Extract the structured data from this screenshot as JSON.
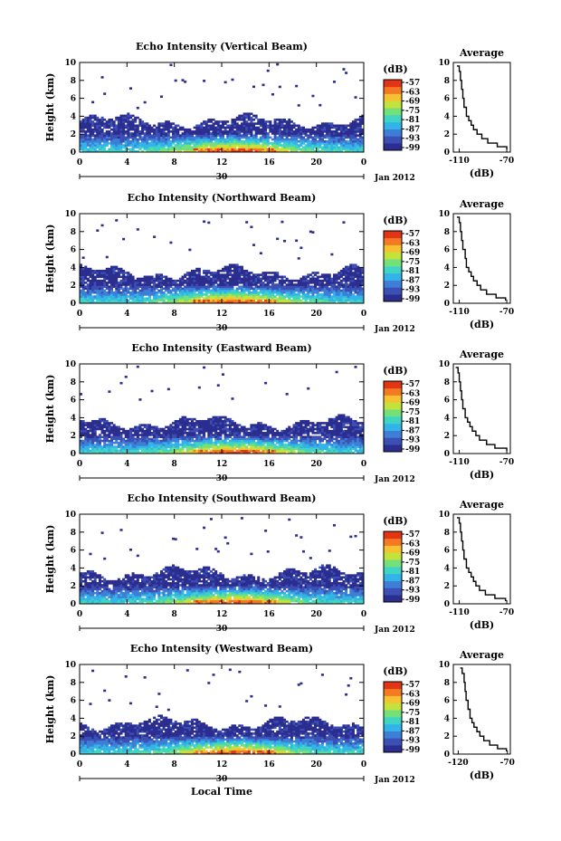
{
  "colors": {
    "scale": [
      "#2b2d8f",
      "#3c4fb4",
      "#3d7fd6",
      "#33b4e8",
      "#3fd4c4",
      "#74e07a",
      "#c4e23c",
      "#f7c231",
      "#f37a22",
      "#e23516"
    ],
    "profile": "#000000"
  },
  "chart_data": [
    {
      "type": "heatmap",
      "title": "Echo Intensity (Vertical Beam)",
      "ylabel": "Height (km)",
      "x_ticks": [
        "0",
        "4",
        "8",
        "12",
        "16",
        "20",
        "0"
      ],
      "y_ticks": [
        "0",
        "2",
        "4",
        "6",
        "8",
        "10"
      ],
      "date_day": "30",
      "date_label": "Jan 2012",
      "xlim": [
        0,
        24
      ],
      "ylim": [
        0,
        10
      ],
      "colorbar": {
        "unit": "(dB)",
        "ticks": [
          "-57",
          "-63",
          "-69",
          "-75",
          "-81",
          "-87",
          "-93",
          "-99"
        ]
      },
      "profile": {
        "title": "Average",
        "xlabel": "(dB)",
        "x_ticks": [
          "-110",
          "-70"
        ],
        "xlim": [
          -115,
          -67
        ],
        "y_ticks": [
          "0",
          "2",
          "4",
          "6",
          "8",
          "10"
        ],
        "heights": [
          0.3,
          0.6,
          1.0,
          1.5,
          2.0,
          2.5,
          3.0,
          3.5,
          4.0,
          5.0,
          6.0,
          7.0,
          8.0,
          9.0,
          9.6
        ],
        "values": [
          -70,
          -78,
          -86,
          -91,
          -95,
          -98,
          -100,
          -102,
          -104,
          -106,
          -107,
          -108,
          -109,
          -110,
          -112
        ]
      }
    },
    {
      "type": "heatmap",
      "title": "Echo Intensity (Northward Beam)",
      "ylabel": "Height (km)",
      "x_ticks": [
        "0",
        "4",
        "8",
        "12",
        "16",
        "20",
        "0"
      ],
      "y_ticks": [
        "0",
        "2",
        "4",
        "6",
        "8",
        "10"
      ],
      "date_day": "30",
      "date_label": "Jan 2012",
      "xlim": [
        0,
        24
      ],
      "ylim": [
        0,
        10
      ],
      "colorbar": {
        "unit": "(dB)",
        "ticks": [
          "-57",
          "-63",
          "-69",
          "-75",
          "-81",
          "-87",
          "-93",
          "-99"
        ]
      },
      "profile": {
        "title": "Average",
        "xlabel": "(dB)",
        "x_ticks": [
          "-110",
          "-70"
        ],
        "xlim": [
          -115,
          -67
        ],
        "y_ticks": [
          "0",
          "2",
          "4",
          "6",
          "8",
          "10"
        ],
        "heights": [
          0.3,
          0.6,
          1.0,
          1.5,
          2.0,
          2.5,
          3.0,
          3.5,
          4.0,
          5.0,
          6.0,
          7.0,
          8.0,
          9.0,
          9.6
        ],
        "values": [
          -71,
          -79,
          -87,
          -92,
          -95,
          -98,
          -100,
          -102,
          -104,
          -105,
          -107,
          -108,
          -109,
          -110,
          -112
        ]
      }
    },
    {
      "type": "heatmap",
      "title": "Echo Intensity (Eastward Beam)",
      "ylabel": "Height (km)",
      "x_ticks": [
        "0",
        "4",
        "8",
        "12",
        "16",
        "20",
        "0"
      ],
      "y_ticks": [
        "0",
        "2",
        "4",
        "6",
        "8",
        "10"
      ],
      "date_day": "30",
      "date_label": "Jan 2012",
      "xlim": [
        0,
        24
      ],
      "ylim": [
        0,
        10
      ],
      "colorbar": {
        "unit": "(dB)",
        "ticks": [
          "-57",
          "-63",
          "-69",
          "-75",
          "-81",
          "-87",
          "-93",
          "-99"
        ]
      },
      "profile": {
        "title": "Average",
        "xlabel": "(dB)",
        "x_ticks": [
          "-110",
          "-70"
        ],
        "xlim": [
          -115,
          -67
        ],
        "y_ticks": [
          "0",
          "2",
          "4",
          "6",
          "8",
          "10"
        ],
        "heights": [
          0.3,
          0.6,
          1.0,
          1.5,
          2.0,
          2.5,
          3.0,
          3.5,
          4.0,
          5.0,
          6.0,
          7.0,
          8.0,
          9.0,
          9.6
        ],
        "values": [
          -70,
          -80,
          -87,
          -93,
          -96,
          -99,
          -101,
          -103,
          -105,
          -107,
          -108,
          -109,
          -110,
          -111,
          -113
        ]
      }
    },
    {
      "type": "heatmap",
      "title": "Echo Intensity (Southward Beam)",
      "ylabel": "Height (km)",
      "x_ticks": [
        "0",
        "4",
        "8",
        "12",
        "16",
        "20",
        "0"
      ],
      "y_ticks": [
        "0",
        "2",
        "4",
        "6",
        "8",
        "10"
      ],
      "date_day": "30",
      "date_label": "Jan 2012",
      "xlim": [
        0,
        24
      ],
      "ylim": [
        0,
        10
      ],
      "colorbar": {
        "unit": "(dB)",
        "ticks": [
          "-57",
          "-63",
          "-69",
          "-75",
          "-81",
          "-87",
          "-93",
          "-99"
        ]
      },
      "profile": {
        "title": "Average",
        "xlabel": "(dB)",
        "x_ticks": [
          "-110",
          "-70"
        ],
        "xlim": [
          -115,
          -67
        ],
        "y_ticks": [
          "0",
          "2",
          "4",
          "6",
          "8",
          "10"
        ],
        "heights": [
          0.3,
          0.6,
          1.0,
          1.5,
          2.0,
          2.5,
          3.0,
          3.5,
          4.0,
          5.0,
          6.0,
          7.0,
          8.0,
          9.0,
          9.6
        ],
        "values": [
          -71,
          -80,
          -88,
          -93,
          -96,
          -98,
          -100,
          -102,
          -104,
          -106,
          -107,
          -108,
          -109,
          -110,
          -112
        ]
      }
    },
    {
      "type": "heatmap",
      "title": "Echo Intensity (Westward Beam)",
      "ylabel": "Height (km)",
      "x_ticks": [
        "0",
        "4",
        "8",
        "12",
        "16",
        "20",
        "0"
      ],
      "y_ticks": [
        "0",
        "2",
        "4",
        "6",
        "8",
        "10"
      ],
      "date_day": "30",
      "date_label": "Jan 2012",
      "xlabel": "Local Time",
      "xlim": [
        0,
        24
      ],
      "ylim": [
        0,
        10
      ],
      "colorbar": {
        "unit": "(dB)",
        "ticks": [
          "-57",
          "-63",
          "-69",
          "-75",
          "-81",
          "-87",
          "-93",
          "-99"
        ]
      },
      "profile": {
        "title": "Average",
        "xlabel": "(dB)",
        "x_ticks": [
          "-120",
          "-70"
        ],
        "xlim": [
          -125,
          -67
        ],
        "y_ticks": [
          "0",
          "2",
          "4",
          "6",
          "8",
          "10"
        ],
        "heights": [
          0.3,
          0.6,
          1.0,
          1.5,
          2.0,
          2.5,
          3.0,
          3.5,
          4.0,
          5.0,
          6.0,
          7.0,
          8.0,
          9.0,
          9.6
        ],
        "values": [
          -71,
          -80,
          -88,
          -94,
          -98,
          -101,
          -104,
          -106,
          -108,
          -110,
          -112,
          -113,
          -114,
          -116,
          -118
        ]
      }
    }
  ]
}
